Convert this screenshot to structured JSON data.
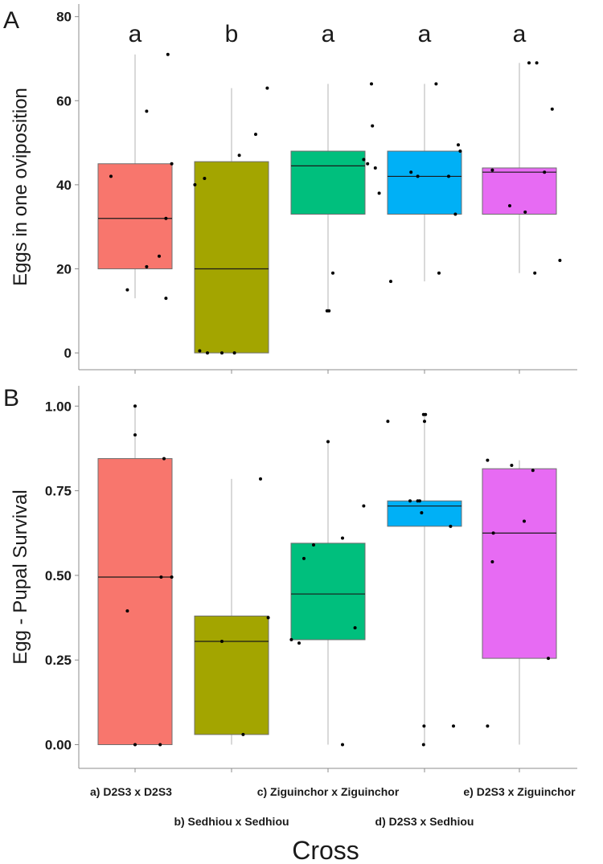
{
  "figure": {
    "xlabel": "Cross",
    "categories": [
      "a) D2S3 x D2S3",
      "b) Sedhiou x Sedhiou",
      "c) Ziguinchor x Ziguinchor",
      "d) D2S3 x Sedhiou",
      "e) D2S3 x Ziguinchor"
    ],
    "colors": [
      "#f8766d",
      "#a3a500",
      "#00bf7d",
      "#00b0f6",
      "#e76bf3"
    ]
  },
  "chart_data": [
    {
      "type": "box",
      "panel": "A",
      "ylabel": "Eggs in one oviposition",
      "ylim": [
        -4,
        83
      ],
      "yticks": [
        "0",
        "20",
        "40",
        "60",
        "80"
      ],
      "yticks_values": [
        0,
        20,
        40,
        60,
        80
      ],
      "significance": [
        "a",
        "b",
        "a",
        "a",
        "a"
      ],
      "boxes": [
        {
          "q1": 20,
          "median": 32,
          "q3": 45,
          "whisker_low": 13,
          "whisker_high": 71
        },
        {
          "q1": 0,
          "median": 20,
          "q3": 45.5,
          "whisker_low": 0,
          "whisker_high": 63
        },
        {
          "q1": 33,
          "median": 44.5,
          "q3": 48,
          "whisker_low": 10,
          "whisker_high": 64
        },
        {
          "q1": 33,
          "median": 42,
          "q3": 48,
          "whisker_low": 17,
          "whisker_high": 64
        },
        {
          "q1": 33,
          "median": 43,
          "q3": 44,
          "whisker_low": 19,
          "whisker_high": 69
        }
      ],
      "points": [
        [
          [
            -0.25,
            42
          ],
          [
            -0.08,
            15
          ],
          [
            0.12,
            57.5
          ],
          [
            0.12,
            20.5
          ],
          [
            0.25,
            23
          ],
          [
            0.32,
            32
          ],
          [
            0.32,
            13
          ],
          [
            0.34,
            71
          ],
          [
            0.38,
            45
          ]
        ],
        [
          [
            -0.38,
            40
          ],
          [
            -0.33,
            0.5
          ],
          [
            -0.28,
            41.5
          ],
          [
            -0.25,
            0
          ],
          [
            -0.1,
            0
          ],
          [
            0.03,
            0
          ],
          [
            0.08,
            47
          ],
          [
            0.25,
            52
          ],
          [
            0.37,
            63
          ]
        ],
        [
          [
            -0.01,
            10
          ],
          [
            0.01,
            10
          ],
          [
            0.05,
            19
          ],
          [
            0.37,
            46
          ],
          [
            0.41,
            45
          ],
          [
            0.45,
            64
          ],
          [
            0.46,
            54
          ],
          [
            0.49,
            44
          ],
          [
            0.53,
            38
          ]
        ],
        [
          [
            -0.35,
            17
          ],
          [
            -0.14,
            43
          ],
          [
            -0.07,
            42
          ],
          [
            0.12,
            64
          ],
          [
            0.15,
            19
          ],
          [
            0.25,
            42
          ],
          [
            0.32,
            33
          ],
          [
            0.35,
            49.5
          ],
          [
            0.37,
            48
          ]
        ],
        [
          [
            -0.28,
            43.5
          ],
          [
            -0.1,
            35
          ],
          [
            0.06,
            33.5
          ],
          [
            0.1,
            69
          ],
          [
            0.16,
            19
          ],
          [
            0.18,
            69
          ],
          [
            0.26,
            43
          ],
          [
            0.34,
            58
          ],
          [
            0.42,
            22
          ]
        ]
      ]
    },
    {
      "type": "box",
      "panel": "B",
      "ylabel": "Egg - Pupal Survival",
      "ylim": [
        -0.07,
        1.06
      ],
      "yticks": [
        "0.00",
        "0.25",
        "0.50",
        "0.75",
        "1.00"
      ],
      "yticks_values": [
        0,
        0.25,
        0.5,
        0.75,
        1.0
      ],
      "boxes": [
        {
          "q1": 0,
          "median": 0.495,
          "q3": 0.845,
          "whisker_low": 0,
          "whisker_high": 1.0
        },
        {
          "q1": 0.03,
          "median": 0.305,
          "q3": 0.38,
          "whisker_low": 0,
          "whisker_high": 0.785
        },
        {
          "q1": 0.31,
          "median": 0.445,
          "q3": 0.595,
          "whisker_low": 0,
          "whisker_high": 0.895
        },
        {
          "q1": 0.645,
          "median": 0.705,
          "q3": 0.72,
          "whisker_low": 0,
          "whisker_high": 0.975
        },
        {
          "q1": 0.255,
          "median": 0.625,
          "q3": 0.815,
          "whisker_low": 0,
          "whisker_high": 0.84
        }
      ],
      "points": [
        [
          [
            -0.08,
            0.395
          ],
          [
            0,
            0.915
          ],
          [
            0,
            1.0
          ],
          [
            0,
            0
          ],
          [
            0.26,
            0
          ],
          [
            0.27,
            0.495
          ],
          [
            0.3,
            0.845
          ],
          [
            0.38,
            0.495
          ]
        ],
        [
          [
            -0.1,
            0.305
          ],
          [
            0.12,
            0.03
          ],
          [
            0.3,
            0.785
          ],
          [
            0.38,
            0.375
          ]
        ],
        [
          [
            -0.38,
            0.31
          ],
          [
            -0.3,
            0.3
          ],
          [
            -0.25,
            0.55
          ],
          [
            -0.15,
            0.59
          ],
          [
            0,
            0.895
          ],
          [
            0.15,
            0.61
          ],
          [
            0.15,
            0
          ],
          [
            0.28,
            0.345
          ]
        ],
        [
          [
            -0.63,
            0.705
          ],
          [
            -0.38,
            0.955
          ],
          [
            -0.15,
            0.72
          ],
          [
            -0.07,
            0.72
          ],
          [
            -0.05,
            0.72
          ],
          [
            -0.03,
            0.685
          ],
          [
            -0.01,
            0.975
          ],
          [
            -0.005,
            0.055
          ],
          [
            -0.01,
            0
          ],
          [
            0,
            0.955
          ],
          [
            0.01,
            0.975
          ],
          [
            0.27,
            0.645
          ],
          [
            0.3,
            0.055
          ]
        ],
        [
          [
            -0.33,
            0.84
          ],
          [
            -0.33,
            0.055
          ],
          [
            -0.28,
            0.54
          ],
          [
            -0.27,
            0.625
          ],
          [
            -0.08,
            0.825
          ],
          [
            0.05,
            0.66
          ],
          [
            0.14,
            0.81
          ],
          [
            0.3,
            0.255
          ]
        ]
      ]
    }
  ]
}
